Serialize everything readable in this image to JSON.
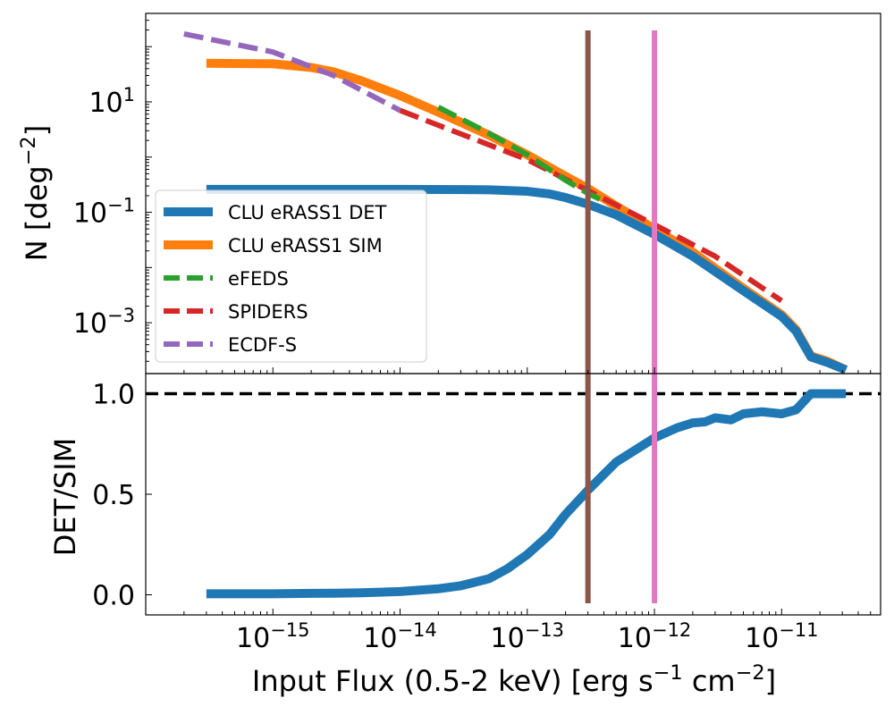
{
  "chart_data": [
    {
      "id": "top",
      "type": "line",
      "xscale": "log",
      "yscale": "log",
      "xlim": [
        1e-16,
        6e-11
      ],
      "ylim": [
        0.00012,
        400
      ],
      "xlabel_parts": [
        "Input Flux (0.5-2 keV) [erg s",
        "−1",
        " cm",
        "−2",
        "]"
      ],
      "ylabel_parts": [
        "N [deg",
        "−2",
        "]"
      ],
      "yticks": [
        {
          "value": 10,
          "base": "10",
          "exp": "1"
        },
        {
          "value": 0.1,
          "base": "10",
          "exp": "−1"
        },
        {
          "value": 0.001,
          "base": "10",
          "exp": "−3"
        }
      ],
      "vlines": [
        {
          "x": 3e-13,
          "color": "#8c564b"
        },
        {
          "x": 1e-12,
          "color": "#e377c2"
        }
      ],
      "legend": {
        "placement": "lower-left"
      },
      "series": [
        {
          "name": "CLU eRASS1 DET",
          "color": "#1f77b4",
          "style": "solid",
          "points": [
            [
              3e-16,
              0.26
            ],
            [
              1e-15,
              0.26
            ],
            [
              3e-15,
              0.26
            ],
            [
              1e-14,
              0.26
            ],
            [
              3e-14,
              0.258
            ],
            [
              5e-14,
              0.255
            ],
            [
              1e-13,
              0.24
            ],
            [
              1.5e-13,
              0.215
            ],
            [
              2e-13,
              0.185
            ],
            [
              3e-13,
              0.14
            ],
            [
              5e-13,
              0.09
            ],
            [
              1e-12,
              0.04
            ],
            [
              2e-12,
              0.016
            ],
            [
              3e-12,
              0.0085
            ],
            [
              5e-12,
              0.0038
            ],
            [
              1e-11,
              0.0013
            ],
            [
              1.3e-11,
              0.0007
            ],
            [
              1.7e-11,
              0.00024
            ],
            [
              2.3e-11,
              0.00019
            ],
            [
              3.2e-11,
              0.00014
            ]
          ]
        },
        {
          "name": "CLU eRASS1 SIM",
          "color": "#ff7f0e",
          "style": "solid",
          "points": [
            [
              3e-16,
              50
            ],
            [
              1e-15,
              49
            ],
            [
              2e-15,
              42
            ],
            [
              3e-15,
              35
            ],
            [
              5e-15,
              24
            ],
            [
              1e-14,
              13
            ],
            [
              2e-14,
              6.5
            ],
            [
              5e-14,
              2.5
            ],
            [
              1e-13,
              1.1
            ],
            [
              2e-13,
              0.45
            ],
            [
              3e-13,
              0.27
            ],
            [
              5e-13,
              0.13
            ],
            [
              1e-12,
              0.05
            ],
            [
              2e-12,
              0.019
            ],
            [
              3e-12,
              0.0097
            ],
            [
              5e-12,
              0.0042
            ],
            [
              1e-11,
              0.0014
            ],
            [
              1.3e-11,
              0.00075
            ],
            [
              1.7e-11,
              0.00025
            ],
            [
              2.3e-11,
              0.0002
            ],
            [
              3.2e-11,
              0.00014
            ]
          ]
        },
        {
          "name": "eFEDS",
          "color": "#2ca02c",
          "style": "dashed",
          "points": [
            [
              2e-14,
              8
            ],
            [
              5e-14,
              2.7
            ],
            [
              1e-13,
              1.1
            ],
            [
              2e-13,
              0.38
            ],
            [
              3e-13,
              0.22
            ],
            [
              4e-13,
              0.16
            ]
          ]
        },
        {
          "name": "SPIDERS",
          "color": "#d62728",
          "style": "dashed",
          "points": [
            [
              1e-14,
              7
            ],
            [
              1e-13,
              0.9
            ],
            [
              1e-12,
              0.06
            ],
            [
              3e-12,
              0.016
            ],
            [
              1e-11,
              0.0025
            ]
          ]
        },
        {
          "name": "ECDF-S",
          "color": "#9467bd",
          "style": "dashed",
          "points": [
            [
              2e-16,
              170
            ],
            [
              1e-15,
              80
            ],
            [
              3e-15,
              30
            ],
            [
              1e-14,
              7
            ]
          ]
        }
      ]
    },
    {
      "id": "bottom",
      "type": "line",
      "xscale": "log",
      "yscale": "linear",
      "xlim": [
        1e-16,
        6e-11
      ],
      "ylim": [
        -0.1,
        1.1
      ],
      "xlabel_parts": [
        "Input Flux (0.5-2 keV) [erg s",
        "−1",
        " cm",
        "−2",
        "]"
      ],
      "ylabel": "DET/SIM",
      "yticks": [
        {
          "value": 0.0,
          "label": "0.0"
        },
        {
          "value": 0.5,
          "label": "0.5"
        },
        {
          "value": 1.0,
          "label": "1.0"
        }
      ],
      "xticks": [
        {
          "value": 1e-15,
          "base": "10",
          "exp": "−15"
        },
        {
          "value": 1e-14,
          "base": "10",
          "exp": "−14"
        },
        {
          "value": 1e-13,
          "base": "10",
          "exp": "−13"
        },
        {
          "value": 1e-12,
          "base": "10",
          "exp": "−12"
        },
        {
          "value": 1e-11,
          "base": "10",
          "exp": "−11"
        }
      ],
      "hline": {
        "y": 1.0,
        "color": "#000000"
      },
      "vlines": [
        {
          "x": 3e-13,
          "color": "#8c564b"
        },
        {
          "x": 1e-12,
          "color": "#e377c2"
        }
      ],
      "series": [
        {
          "name": "DET/SIM",
          "color": "#1f77b4",
          "style": "solid",
          "points": [
            [
              3e-16,
              0.005
            ],
            [
              1e-15,
              0.005
            ],
            [
              2e-15,
              0.007
            ],
            [
              3e-15,
              0.008
            ],
            [
              5e-15,
              0.01
            ],
            [
              1e-14,
              0.016
            ],
            [
              2e-14,
              0.03
            ],
            [
              3e-14,
              0.045
            ],
            [
              5e-14,
              0.08
            ],
            [
              7e-14,
              0.13
            ],
            [
              1e-13,
              0.2
            ],
            [
              1.5e-13,
              0.3
            ],
            [
              2e-13,
              0.4
            ],
            [
              3e-13,
              0.52
            ],
            [
              5e-13,
              0.66
            ],
            [
              1e-12,
              0.78
            ],
            [
              1.5e-12,
              0.83
            ],
            [
              2e-12,
              0.855
            ],
            [
              2.5e-12,
              0.86
            ],
            [
              3e-12,
              0.88
            ],
            [
              4e-12,
              0.87
            ],
            [
              5e-12,
              0.9
            ],
            [
              7e-12,
              0.91
            ],
            [
              1e-11,
              0.9
            ],
            [
              1.3e-11,
              0.92
            ],
            [
              1.7e-11,
              1.0
            ],
            [
              2.3e-11,
              1.0
            ],
            [
              3.2e-11,
              1.0
            ]
          ]
        }
      ]
    }
  ]
}
